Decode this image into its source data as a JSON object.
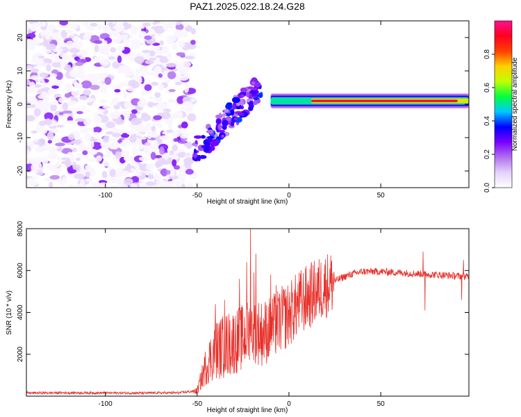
{
  "title": "PAZ1.2025.022.18.24.G28",
  "chart_data": [
    {
      "type": "heatmap",
      "xlabel": "Height of straight line (km)",
      "ylabel": "Frequency (Hz)",
      "xlim": [
        -143,
        98
      ],
      "ylim": [
        -25,
        25
      ],
      "x_ticks": [
        "-100",
        "-50",
        "0",
        "50"
      ],
      "y_ticks": [
        "-20",
        "-10",
        "0",
        "10",
        "20"
      ],
      "colorbar": {
        "label": "Normalized spectral amplitude",
        "range": [
          0,
          1
        ],
        "ticks": [
          "0.0",
          "0.2",
          "0.4",
          "0.6",
          "0.8"
        ],
        "colors": [
          "#ffffff",
          "#e4d2fa",
          "#b070f0",
          "#7a00ff",
          "#0000ff",
          "#00c8ff",
          "#00ff40",
          "#c0ff00",
          "#ffd000",
          "#ff4000",
          "#ff0020",
          "#ff1090"
        ]
      },
      "description": {
        "noise_region_x": [
          -143,
          -52
        ],
        "noise_amplitude_range": [
          0.02,
          0.15
        ],
        "transition_region_x": [
          -52,
          -15
        ],
        "transition_frequency_range": [
          -15,
          6
        ],
        "ridge_x": [
          -10,
          98
        ],
        "ridge_frequency": 1,
        "ridge_peak_amplitude": 0.93
      }
    },
    {
      "type": "line",
      "xlabel": "Height of straight line (km)",
      "ylabel": "SNR (10 * v/v)",
      "xlim": [
        -143,
        98
      ],
      "ylim": [
        0,
        8000
      ],
      "x_ticks": [
        "-100",
        "-50",
        "0",
        "50"
      ],
      "y_ticks": [
        "2000",
        "4000",
        "6000",
        "8000"
      ],
      "color": "#e8302a",
      "series": [
        {
          "x": [
            -143,
            -120,
            -100,
            -80,
            -60,
            -50,
            -45,
            -40,
            -35,
            -30,
            -25,
            -20,
            -15,
            -10,
            -5,
            0,
            5,
            10,
            15,
            20,
            25,
            30,
            35,
            40,
            50,
            60,
            70,
            80,
            90,
            98
          ],
          "values": [
            150,
            160,
            155,
            150,
            160,
            250,
            1500,
            2200,
            2400,
            2600,
            2800,
            3200,
            3000,
            3200,
            3600,
            3900,
            4400,
            4700,
            5000,
            5300,
            5500,
            5700,
            5850,
            5950,
            5950,
            5900,
            5850,
            5800,
            5750,
            5700
          ],
          "spikes": [
            {
              "x": -40,
              "value": 4400
            },
            {
              "x": -35,
              "value": 4600
            },
            {
              "x": -27,
              "value": 5600
            },
            {
              "x": -23,
              "value": 6400
            },
            {
              "x": -21,
              "value": 8000
            },
            {
              "x": -19,
              "value": 5900
            },
            {
              "x": -18,
              "value": 6800
            },
            {
              "x": -10,
              "value": 5800
            },
            {
              "x": -7,
              "value": 5300
            },
            {
              "x": -3,
              "value": 5100
            },
            {
              "x": 73,
              "value": 6900
            },
            {
              "x": 74,
              "value": 4100
            },
            {
              "x": 95,
              "value": 6500
            },
            {
              "x": 94,
              "value": 4600
            }
          ]
        }
      ]
    }
  ]
}
